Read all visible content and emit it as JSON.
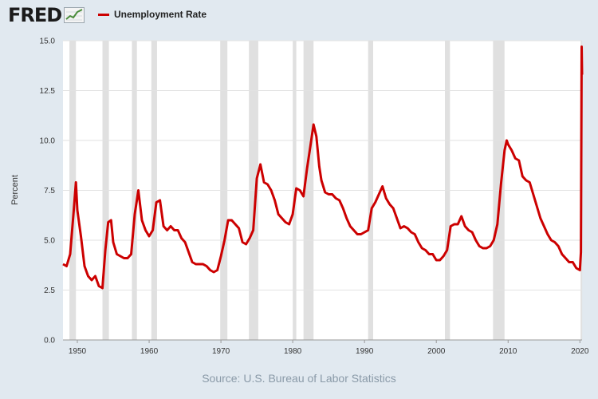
{
  "header": {
    "logo_text": "FRED",
    "legend_label": "Unemployment Rate",
    "series_color": "#cc0000"
  },
  "source": "Source: U.S. Bureau of Labor Statistics",
  "chart_data": {
    "type": "line",
    "title": "",
    "xlabel": "",
    "ylabel": "Percent",
    "xlim": [
      1948,
      2020.3
    ],
    "ylim": [
      0,
      15
    ],
    "y_ticks": [
      "0.0",
      "2.5",
      "5.0",
      "7.5",
      "10.0",
      "12.5",
      "15.0"
    ],
    "x_ticks": [
      "1950",
      "1960",
      "1970",
      "1980",
      "1990",
      "2000",
      "2010",
      "2020"
    ],
    "grid": true,
    "recession_color": "#e0e0e0",
    "recessions": [
      [
        1948.9,
        1949.8
      ],
      [
        1953.5,
        1954.4
      ],
      [
        1957.6,
        1958.3
      ],
      [
        1960.3,
        1961.1
      ],
      [
        1969.9,
        1970.9
      ],
      [
        1973.9,
        1975.2
      ],
      [
        1980.0,
        1980.5
      ],
      [
        1981.5,
        1982.9
      ],
      [
        1990.5,
        1991.2
      ],
      [
        2001.2,
        2001.9
      ],
      [
        2007.9,
        2009.5
      ],
      [
        2020.1,
        2020.3
      ]
    ],
    "series": [
      {
        "name": "Unemployment Rate",
        "x": [
          1948.0,
          1948.5,
          1949.0,
          1949.5,
          1949.8,
          1950.0,
          1950.5,
          1951.0,
          1951.5,
          1952.0,
          1952.5,
          1953.0,
          1953.5,
          1953.9,
          1954.3,
          1954.7,
          1955.0,
          1955.5,
          1956.0,
          1956.5,
          1957.0,
          1957.5,
          1958.0,
          1958.5,
          1959.0,
          1959.5,
          1960.0,
          1960.5,
          1961.0,
          1961.5,
          1962.0,
          1962.5,
          1963.0,
          1963.5,
          1964.0,
          1964.5,
          1965.0,
          1965.5,
          1966.0,
          1966.5,
          1967.0,
          1967.5,
          1968.0,
          1968.5,
          1969.0,
          1969.5,
          1970.0,
          1970.5,
          1971.0,
          1971.5,
          1972.0,
          1972.5,
          1973.0,
          1973.5,
          1974.0,
          1974.5,
          1975.0,
          1975.5,
          1976.0,
          1976.5,
          1977.0,
          1977.5,
          1978.0,
          1978.5,
          1979.0,
          1979.5,
          1980.0,
          1980.5,
          1981.0,
          1981.5,
          1982.0,
          1982.5,
          1982.9,
          1983.3,
          1983.7,
          1984.0,
          1984.5,
          1985.0,
          1985.5,
          1986.0,
          1986.5,
          1987.0,
          1987.5,
          1988.0,
          1988.5,
          1989.0,
          1989.5,
          1990.0,
          1990.5,
          1991.0,
          1991.5,
          1992.0,
          1992.5,
          1993.0,
          1993.5,
          1994.0,
          1994.5,
          1995.0,
          1995.5,
          1996.0,
          1996.5,
          1997.0,
          1997.5,
          1998.0,
          1998.5,
          1999.0,
          1999.5,
          2000.0,
          2000.5,
          2001.0,
          2001.5,
          2002.0,
          2002.5,
          2003.0,
          2003.5,
          2004.0,
          2004.5,
          2005.0,
          2005.5,
          2006.0,
          2006.5,
          2007.0,
          2007.5,
          2008.0,
          2008.5,
          2009.0,
          2009.5,
          2009.8,
          2010.0,
          2010.5,
          2011.0,
          2011.5,
          2012.0,
          2012.5,
          2013.0,
          2013.5,
          2014.0,
          2014.5,
          2015.0,
          2015.5,
          2016.0,
          2016.5,
          2017.0,
          2017.5,
          2018.0,
          2018.5,
          2019.0,
          2019.5,
          2020.0,
          2020.15,
          2020.25,
          2020.3
        ],
        "y": [
          3.8,
          3.7,
          4.3,
          6.5,
          7.9,
          6.5,
          5.2,
          3.7,
          3.2,
          3.0,
          3.2,
          2.7,
          2.6,
          4.5,
          5.9,
          6.0,
          4.9,
          4.3,
          4.2,
          4.1,
          4.1,
          4.3,
          6.3,
          7.5,
          6.0,
          5.5,
          5.2,
          5.5,
          6.9,
          7.0,
          5.7,
          5.5,
          5.7,
          5.5,
          5.5,
          5.1,
          4.9,
          4.4,
          3.9,
          3.8,
          3.8,
          3.8,
          3.7,
          3.5,
          3.4,
          3.5,
          4.2,
          5.0,
          6.0,
          6.0,
          5.8,
          5.6,
          4.9,
          4.8,
          5.1,
          5.5,
          8.1,
          8.8,
          7.9,
          7.8,
          7.5,
          7.0,
          6.3,
          6.1,
          5.9,
          5.8,
          6.3,
          7.6,
          7.5,
          7.2,
          8.6,
          9.8,
          10.8,
          10.2,
          8.7,
          8.0,
          7.4,
          7.3,
          7.3,
          7.1,
          7.0,
          6.6,
          6.1,
          5.7,
          5.5,
          5.3,
          5.3,
          5.4,
          5.5,
          6.6,
          6.9,
          7.3,
          7.7,
          7.1,
          6.8,
          6.6,
          6.1,
          5.6,
          5.7,
          5.6,
          5.4,
          5.3,
          4.9,
          4.6,
          4.5,
          4.3,
          4.3,
          4.0,
          4.0,
          4.2,
          4.5,
          5.7,
          5.8,
          5.8,
          6.2,
          5.7,
          5.5,
          5.4,
          5.0,
          4.7,
          4.6,
          4.6,
          4.7,
          5.0,
          5.8,
          7.8,
          9.5,
          10.0,
          9.8,
          9.5,
          9.1,
          9.0,
          8.2,
          8.0,
          7.9,
          7.3,
          6.7,
          6.1,
          5.7,
          5.3,
          5.0,
          4.9,
          4.7,
          4.3,
          4.1,
          3.9,
          3.9,
          3.6,
          3.5,
          4.4,
          14.7,
          13.3
        ]
      }
    ]
  }
}
